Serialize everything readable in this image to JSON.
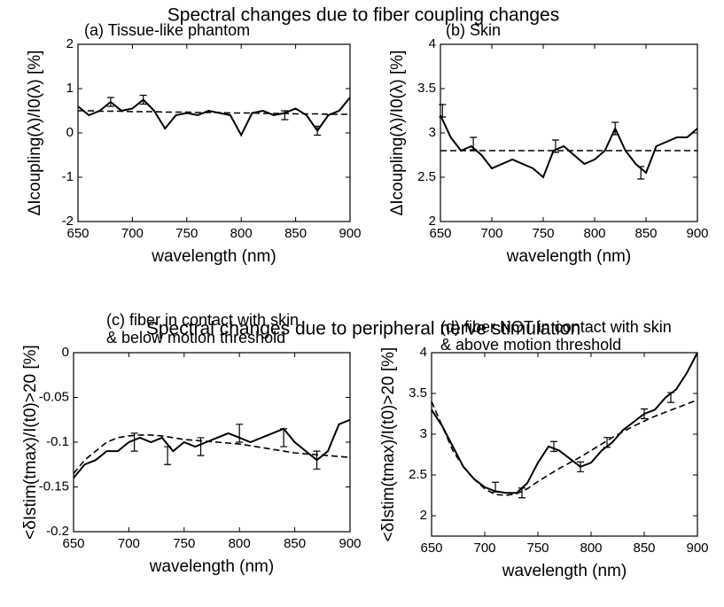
{
  "headings": [
    "Spectral changes due to fiber coupling changes",
    "Spectral changes due to peripheral nerve stimulation"
  ],
  "chart_data": [
    {
      "type": "line",
      "title": "(a) Tissue-like phantom",
      "xlabel": "wavelength (nm)",
      "ylabel": "ΔIcoupling(λ)/I0(λ) [%]",
      "x": [
        650,
        660,
        670,
        680,
        690,
        700,
        710,
        720,
        730,
        740,
        750,
        760,
        770,
        780,
        790,
        800,
        810,
        820,
        830,
        840,
        850,
        860,
        870,
        880,
        890,
        900
      ],
      "series": [
        {
          "color": "#000000",
          "style": "solid",
          "values": [
            0.6,
            0.4,
            0.5,
            0.7,
            0.5,
            0.55,
            0.75,
            0.5,
            0.1,
            0.4,
            0.45,
            0.4,
            0.5,
            0.45,
            0.4,
            -0.05,
            0.45,
            0.5,
            0.4,
            0.45,
            0.55,
            0.4,
            0.05,
            0.4,
            0.5,
            0.8
          ]
        },
        {
          "color": "#000000",
          "style": "dashed",
          "values": [
            0.5,
            0.5,
            0.49,
            0.49,
            0.49,
            0.48,
            0.48,
            0.48,
            0.47,
            0.47,
            0.47,
            0.46,
            0.46,
            0.46,
            0.45,
            0.45,
            0.45,
            0.44,
            0.44,
            0.44,
            0.43,
            0.43,
            0.43,
            0.42,
            0.42,
            0.42
          ]
        }
      ],
      "errorbars": {
        "x": [
          680,
          710,
          840,
          870
        ],
        "values": [
          0.7,
          0.75,
          0.4,
          0.05
        ],
        "errors": [
          0.1,
          0.1,
          0.1,
          0.1
        ]
      },
      "xlim": [
        650,
        900
      ],
      "xticks": [
        650,
        700,
        750,
        800,
        850,
        900
      ],
      "ylim": [
        -2,
        2
      ],
      "yticks": [
        -2,
        -1,
        0,
        1,
        2
      ],
      "grid": false
    },
    {
      "type": "line",
      "title": "(b) Skin",
      "xlabel": "wavelength (nm)",
      "ylabel": "ΔIcoupling(λ)/I0(λ) [%]",
      "x": [
        650,
        660,
        670,
        680,
        690,
        700,
        710,
        720,
        730,
        740,
        750,
        760,
        770,
        780,
        790,
        800,
        810,
        820,
        830,
        840,
        850,
        860,
        870,
        880,
        890,
        900
      ],
      "series": [
        {
          "color": "#000000",
          "style": "solid",
          "values": [
            3.2,
            2.95,
            2.8,
            2.85,
            2.75,
            2.6,
            2.65,
            2.7,
            2.65,
            2.6,
            2.5,
            2.8,
            2.85,
            2.75,
            2.65,
            2.7,
            2.8,
            3.05,
            2.8,
            2.65,
            2.55,
            2.85,
            2.9,
            2.95,
            2.95,
            3.05
          ]
        },
        {
          "color": "#000000",
          "style": "dashed",
          "values": [
            2.8,
            2.8,
            2.8,
            2.8,
            2.8,
            2.8,
            2.8,
            2.8,
            2.8,
            2.8,
            2.8,
            2.8,
            2.8,
            2.8,
            2.8,
            2.8,
            2.8,
            2.8,
            2.8,
            2.8,
            2.8,
            2.8,
            2.8,
            2.8,
            2.8,
            2.8
          ]
        }
      ],
      "errorbars": {
        "x": [
          652,
          682,
          762,
          820,
          845
        ],
        "values": [
          3.25,
          2.88,
          2.85,
          3.05,
          2.55
        ],
        "errors": [
          0.07,
          0.07,
          0.07,
          0.07,
          0.07
        ]
      },
      "xlim": [
        650,
        900
      ],
      "xticks": [
        650,
        700,
        750,
        800,
        850,
        900
      ],
      "ylim": [
        2,
        4
      ],
      "yticks": [
        2,
        2.5,
        3,
        3.5,
        4
      ],
      "grid": false
    },
    {
      "type": "line",
      "title": "(c) fiber in contact with skin",
      "subtitle": "& below motion threshold",
      "xlabel": "wavelength (nm)",
      "ylabel": "<δIstim(tmax)/I(t0)>20 [%]",
      "x": [
        650,
        660,
        670,
        680,
        690,
        700,
        710,
        720,
        730,
        740,
        750,
        760,
        770,
        780,
        790,
        800,
        810,
        820,
        830,
        840,
        850,
        860,
        870,
        880,
        890,
        900
      ],
      "series": [
        {
          "color": "#000000",
          "style": "solid",
          "values": [
            -0.14,
            -0.125,
            -0.12,
            -0.11,
            -0.11,
            -0.1,
            -0.095,
            -0.1,
            -0.095,
            -0.11,
            -0.1,
            -0.105,
            -0.1,
            -0.095,
            -0.09,
            -0.095,
            -0.1,
            -0.095,
            -0.09,
            -0.085,
            -0.1,
            -0.11,
            -0.12,
            -0.11,
            -0.08,
            -0.075
          ]
        },
        {
          "color": "#000000",
          "style": "dashed",
          "values": [
            -0.135,
            -0.12,
            -0.11,
            -0.1,
            -0.095,
            -0.093,
            -0.092,
            -0.092,
            -0.093,
            -0.095,
            -0.097,
            -0.098,
            -0.099,
            -0.1,
            -0.101,
            -0.102,
            -0.104,
            -0.106,
            -0.108,
            -0.11,
            -0.112,
            -0.113,
            -0.114,
            -0.115,
            -0.116,
            -0.117
          ]
        }
      ],
      "errorbars": {
        "x": [
          705,
          735,
          765,
          800,
          840,
          870
        ],
        "values": [
          -0.1,
          -0.115,
          -0.105,
          -0.09,
          -0.095,
          -0.12
        ],
        "errors": [
          0.01,
          0.01,
          0.01,
          0.01,
          0.01,
          0.01
        ]
      },
      "xlim": [
        650,
        900
      ],
      "xticks": [
        650,
        700,
        750,
        800,
        850,
        900
      ],
      "ylim": [
        -0.2,
        0
      ],
      "yticks": [
        -0.2,
        -0.15,
        -0.1,
        -0.05,
        0
      ],
      "grid": false
    },
    {
      "type": "line",
      "title": "(d) fiber NOT in contact with skin",
      "subtitle": "& above motion threshold",
      "xlabel": "wavelength (nm)",
      "ylabel": "<δIstim(tmax)/I(t0)>20 [%]",
      "x": [
        650,
        660,
        670,
        680,
        690,
        700,
        710,
        720,
        730,
        740,
        750,
        760,
        770,
        780,
        790,
        800,
        810,
        820,
        830,
        840,
        850,
        860,
        870,
        880,
        890,
        900
      ],
      "series": [
        {
          "color": "#000000",
          "style": "solid",
          "values": [
            3.3,
            3.1,
            2.85,
            2.6,
            2.45,
            2.35,
            2.3,
            2.28,
            2.28,
            2.4,
            2.65,
            2.85,
            2.8,
            2.7,
            2.6,
            2.65,
            2.8,
            2.9,
            3.05,
            3.15,
            3.25,
            3.3,
            3.45,
            3.55,
            3.75,
            4.0
          ]
        },
        {
          "color": "#000000",
          "style": "dashed",
          "values": [
            3.4,
            3.1,
            2.8,
            2.6,
            2.45,
            2.33,
            2.26,
            2.25,
            2.27,
            2.33,
            2.42,
            2.5,
            2.58,
            2.65,
            2.72,
            2.8,
            2.88,
            2.96,
            3.03,
            3.1,
            3.16,
            3.22,
            3.27,
            3.32,
            3.37,
            3.42
          ]
        }
      ],
      "errorbars": {
        "x": [
          710,
          735,
          765,
          790,
          815,
          850,
          875
        ],
        "values": [
          2.35,
          2.28,
          2.85,
          2.6,
          2.9,
          3.25,
          3.45
        ],
        "errors": [
          0.06,
          0.06,
          0.06,
          0.06,
          0.06,
          0.06,
          0.06
        ]
      },
      "xlim": [
        650,
        900
      ],
      "xticks": [
        650,
        700,
        750,
        800,
        850,
        900
      ],
      "ylim": [
        1.75,
        4
      ],
      "yticks": [
        2,
        2.5,
        3,
        3.5,
        4
      ],
      "grid": false
    }
  ]
}
